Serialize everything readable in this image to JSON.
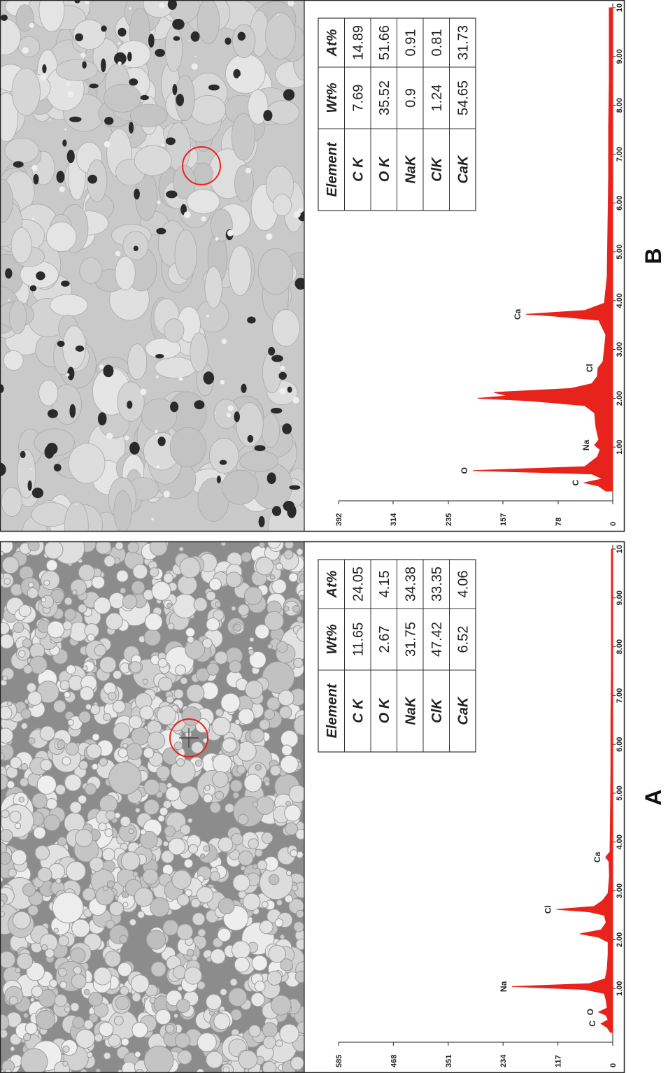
{
  "chart_data": [
    {
      "type": "line",
      "panel_label": "A",
      "color": "#e8231b",
      "x": [
        0.1,
        0.2,
        0.28,
        0.36,
        0.45,
        0.52,
        0.6,
        0.75,
        0.9,
        0.98,
        1.04,
        1.1,
        1.2,
        1.4,
        1.7,
        1.95,
        2.05,
        2.12,
        2.2,
        2.35,
        2.5,
        2.57,
        2.62,
        2.68,
        2.8,
        2.95,
        3.3,
        3.6,
        3.69,
        3.8,
        4.5,
        5.5,
        6.5,
        7.5,
        8.5,
        9.5,
        10
      ],
      "values": [
        5,
        12,
        25,
        10,
        14,
        30,
        12,
        14,
        18,
        60,
        215,
        50,
        16,
        12,
        10,
        10,
        30,
        70,
        25,
        14,
        18,
        50,
        120,
        40,
        22,
        10,
        7,
        8,
        15,
        6,
        5,
        4,
        4,
        3,
        3,
        3,
        3
      ],
      "xlim": [
        0,
        10
      ],
      "xticks": [
        {
          "value": 1,
          "label": "1.00"
        },
        {
          "value": 2,
          "label": "2.00"
        },
        {
          "value": 3,
          "label": "3.00"
        },
        {
          "value": 4,
          "label": "4.00"
        },
        {
          "value": 5,
          "label": "5.00"
        },
        {
          "value": 6,
          "label": "6.00"
        },
        {
          "value": 7,
          "label": "7.00"
        },
        {
          "value": 8,
          "label": "8.00"
        },
        {
          "value": 9,
          "label": "9.00"
        },
        10
      ],
      "ylim": [
        0,
        585
      ],
      "yticks": [
        0,
        117,
        234,
        351,
        468,
        585
      ],
      "annotations": [
        {
          "text": "C",
          "x": 0.28
        },
        {
          "text": "O",
          "x": 0.52
        },
        {
          "text": "Na",
          "x": 1.04
        },
        {
          "text": "Cl",
          "x": 2.62
        },
        {
          "text": "Ca",
          "x": 3.69
        }
      ],
      "table": {
        "columns": [
          "Element",
          "Wt%",
          "At%"
        ],
        "rows": [
          [
            "C K",
            11.65,
            24.05
          ],
          [
            "O K",
            2.67,
            4.15
          ],
          [
            "NaK",
            31.75,
            34.38
          ],
          [
            "ClK",
            47.42,
            33.35
          ],
          [
            "CaK",
            6.52,
            4.06
          ]
        ]
      }
    },
    {
      "type": "line",
      "panel_label": "B",
      "color": "#e8231b",
      "x": [
        0.1,
        0.2,
        0.27,
        0.35,
        0.45,
        0.52,
        0.6,
        0.8,
        0.95,
        1.04,
        1.15,
        1.4,
        1.7,
        1.85,
        1.95,
        2.0,
        2.05,
        2.12,
        2.2,
        2.3,
        2.45,
        2.62,
        2.75,
        3.0,
        3.3,
        3.6,
        3.69,
        3.72,
        3.8,
        3.95,
        4.5,
        5.5,
        6.5,
        7.5,
        8.5,
        9.5,
        10
      ],
      "values": [
        10,
        20,
        41,
        15,
        30,
        200,
        40,
        22,
        18,
        26,
        20,
        24,
        26,
        40,
        120,
        193,
        150,
        170,
        60,
        30,
        22,
        21,
        14,
        12,
        10,
        20,
        90,
        124,
        40,
        12,
        8,
        7,
        6,
        6,
        5,
        5,
        5
      ],
      "xlim": [
        0,
        10
      ],
      "xticks": [
        {
          "value": 1,
          "label": "1.00"
        },
        {
          "value": 2,
          "label": "2.00"
        },
        {
          "value": 3,
          "label": "3.00"
        },
        {
          "value": 4,
          "label": "4.00"
        },
        {
          "value": 5,
          "label": "5.00"
        },
        {
          "value": 6,
          "label": "6.00"
        },
        {
          "value": 7,
          "label": "7.00"
        },
        {
          "value": 8,
          "label": "8.00"
        },
        {
          "value": 9,
          "label": "9.00"
        },
        10
      ],
      "ylim": [
        0,
        392
      ],
      "yticks": [
        0,
        78,
        157,
        235,
        314,
        392
      ],
      "annotations": [
        {
          "text": "C",
          "x": 0.27
        },
        {
          "text": "O",
          "x": 0.52
        },
        {
          "text": "Na",
          "x": 1.04
        },
        {
          "text": "Cl",
          "x": 2.62
        },
        {
          "text": "Ca",
          "x": 3.72
        }
      ],
      "table": {
        "columns": [
          "Element",
          "Wt%",
          "At%"
        ],
        "rows": [
          [
            "C K",
            7.69,
            14.89
          ],
          [
            "O K",
            35.52,
            51.66
          ],
          [
            "NaK",
            0.9,
            0.91
          ],
          [
            "ClK",
            1.24,
            0.81
          ],
          [
            "CaK",
            54.65,
            31.73
          ]
        ]
      }
    }
  ]
}
